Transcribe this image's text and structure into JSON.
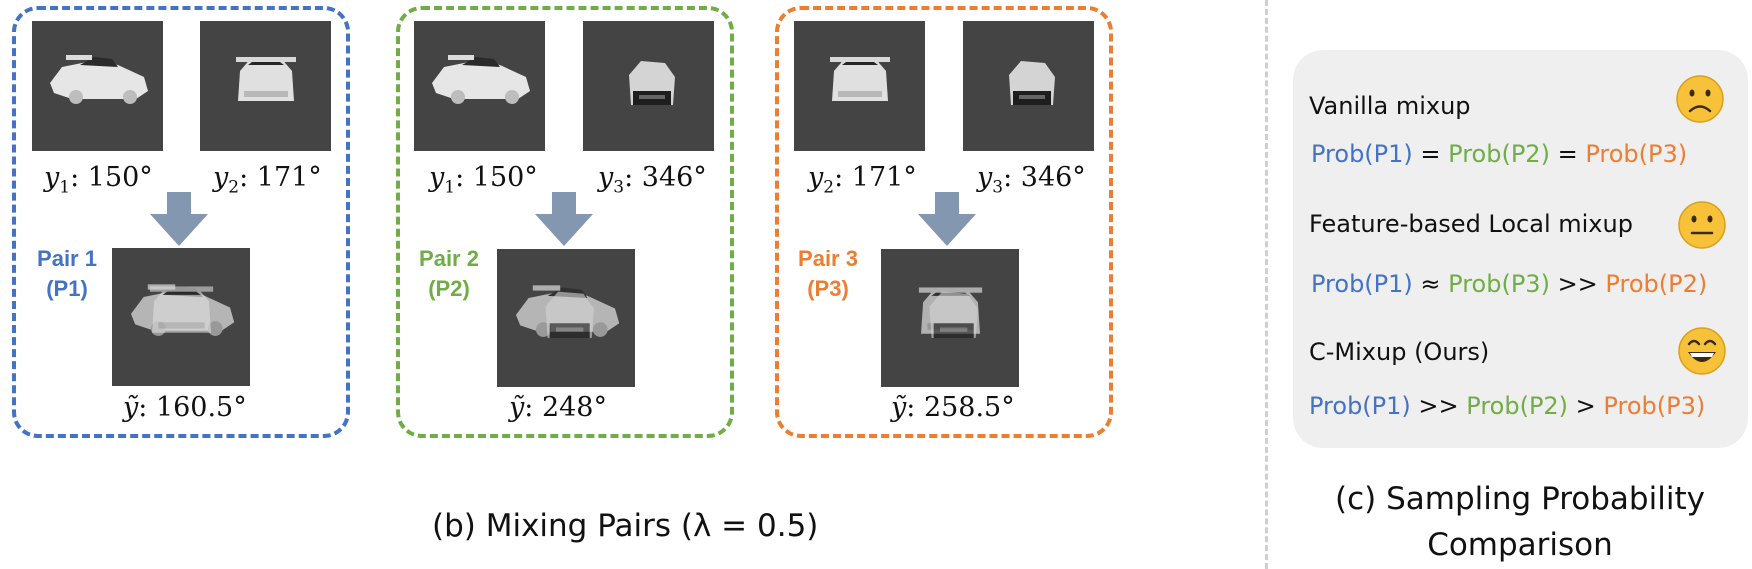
{
  "colors": {
    "pair1": "#4472c4",
    "pair2": "#70ad47",
    "pair3": "#ed7d31",
    "image_bg": "#444444",
    "arrow": "#8497b0"
  },
  "pairs": [
    {
      "label_line1": "Pair 1",
      "label_line2": "(P1)",
      "left": {
        "var": "y",
        "sub": "1",
        "value": ": 150°"
      },
      "right": {
        "var": "y",
        "sub": "2",
        "value": ": 171°"
      },
      "mixed": {
        "var": "ỹ",
        "value": ": 160.5°"
      }
    },
    {
      "label_line1": "Pair 2",
      "label_line2": "(P2)",
      "left": {
        "var": "y",
        "sub": "1",
        "value": ": 150°"
      },
      "right": {
        "var": "y",
        "sub": "3",
        "value": ": 346°"
      },
      "mixed": {
        "var": "ỹ",
        "value": ": 248°"
      }
    },
    {
      "label_line1": "Pair 3",
      "label_line2": "(P3)",
      "left": {
        "var": "y",
        "sub": "2",
        "value": ": 171°"
      },
      "right": {
        "var": "y",
        "sub": "3",
        "value": ": 346°"
      },
      "mixed": {
        "var": "ỹ",
        "value": ": 258.5°"
      }
    }
  ],
  "captions": {
    "b": "(b) Mixing Pairs (λ = 0.5)",
    "c_line1": "(c) Sampling Probability",
    "c_line2": "Comparison"
  },
  "comparison": {
    "methods": [
      {
        "name": "Vanilla mixup",
        "emoji": "frowning-face-icon",
        "terms": [
          "Prob(P1)",
          " = ",
          "Prob(P2)",
          " = ",
          "Prob(P3)"
        ]
      },
      {
        "name": "Feature-based Local mixup",
        "emoji": "neutral-face-icon",
        "terms": [
          "Prob(P1)",
          " ≈ ",
          "Prob(P3)",
          " >> ",
          "Prob(P2)"
        ]
      },
      {
        "name": "C-Mixup (Ours)",
        "emoji": "grinning-face-icon",
        "terms": [
          "Prob(P1)",
          " >> ",
          "Prob(P2)",
          " > ",
          "Prob(P3)"
        ]
      }
    ]
  }
}
